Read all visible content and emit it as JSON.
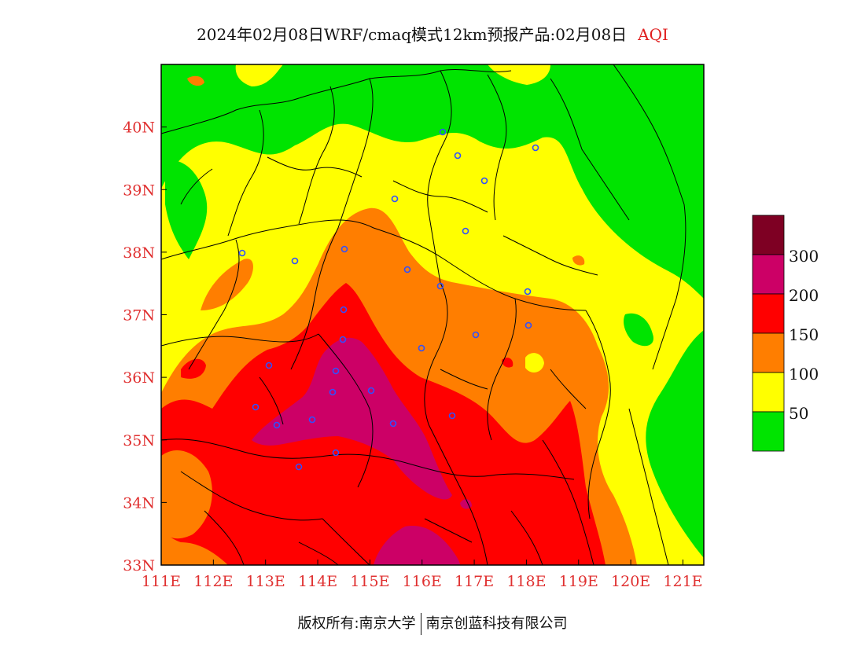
{
  "title": {
    "main": "2024年02月08日WRF/cmaq模式12km预报产品:02月08日",
    "aqi": "AQI"
  },
  "footer": {
    "left": "版权所有:南京大学",
    "right": "南京创蓝科技有限公司"
  },
  "axes": {
    "x_ticks": [
      "111E",
      "112E",
      "113E",
      "114E",
      "115E",
      "116E",
      "117E",
      "118E",
      "119E",
      "120E",
      "121E"
    ],
    "y_ticks": [
      "33N",
      "34N",
      "35N",
      "36N",
      "37N",
      "38N",
      "39N",
      "40N"
    ],
    "lon_range": [
      111,
      121.4
    ],
    "lat_range": [
      33,
      41
    ]
  },
  "legend": {
    "labels": [
      "50",
      "100",
      "150",
      "200",
      "300"
    ],
    "colors": {
      "green": "#00e400",
      "yellow": "#ffff00",
      "orange": "#ff7e00",
      "red": "#ff0000",
      "purple": "#cc0066",
      "maroon": "#7e0023"
    }
  },
  "stations_icon": "circle-marker-icon"
}
